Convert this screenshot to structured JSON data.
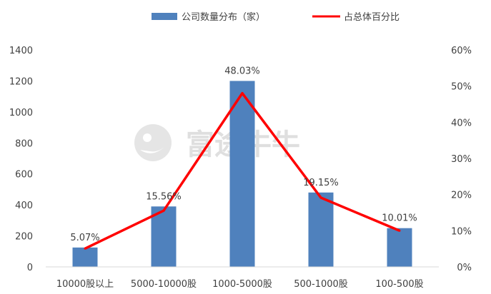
{
  "chart_data": {
    "type": "bar",
    "categories": [
      "10000股以上",
      "5000-10000股",
      "1000-5000股",
      "500-1000股",
      "100-500股"
    ],
    "series": [
      {
        "name": "公司数量分布（家）",
        "type": "bar",
        "axis": "left",
        "color": "#4f81bd",
        "values": [
          125,
          390,
          1200,
          480,
          250
        ]
      },
      {
        "name": "占总体百分比",
        "type": "line",
        "axis": "right",
        "color": "#ff0000",
        "values": [
          5.07,
          15.56,
          48.03,
          19.15,
          10.01
        ],
        "labels": [
          "5.07%",
          "15.56%",
          "48.03%",
          "19.15%",
          "10.01%"
        ]
      }
    ],
    "y_left": {
      "min": 0,
      "max": 1400,
      "ticks": [
        "0",
        "200",
        "400",
        "600",
        "800",
        "1000",
        "1200",
        "1400"
      ]
    },
    "y_right": {
      "min": 0,
      "max": 60,
      "ticks": [
        "0%",
        "10%",
        "20%",
        "30%",
        "40%",
        "50%",
        "60%"
      ]
    },
    "grid": false,
    "legend": "top-center"
  },
  "watermark": {
    "text": "富途牛牛",
    "icon": "futu-logo-icon"
  }
}
